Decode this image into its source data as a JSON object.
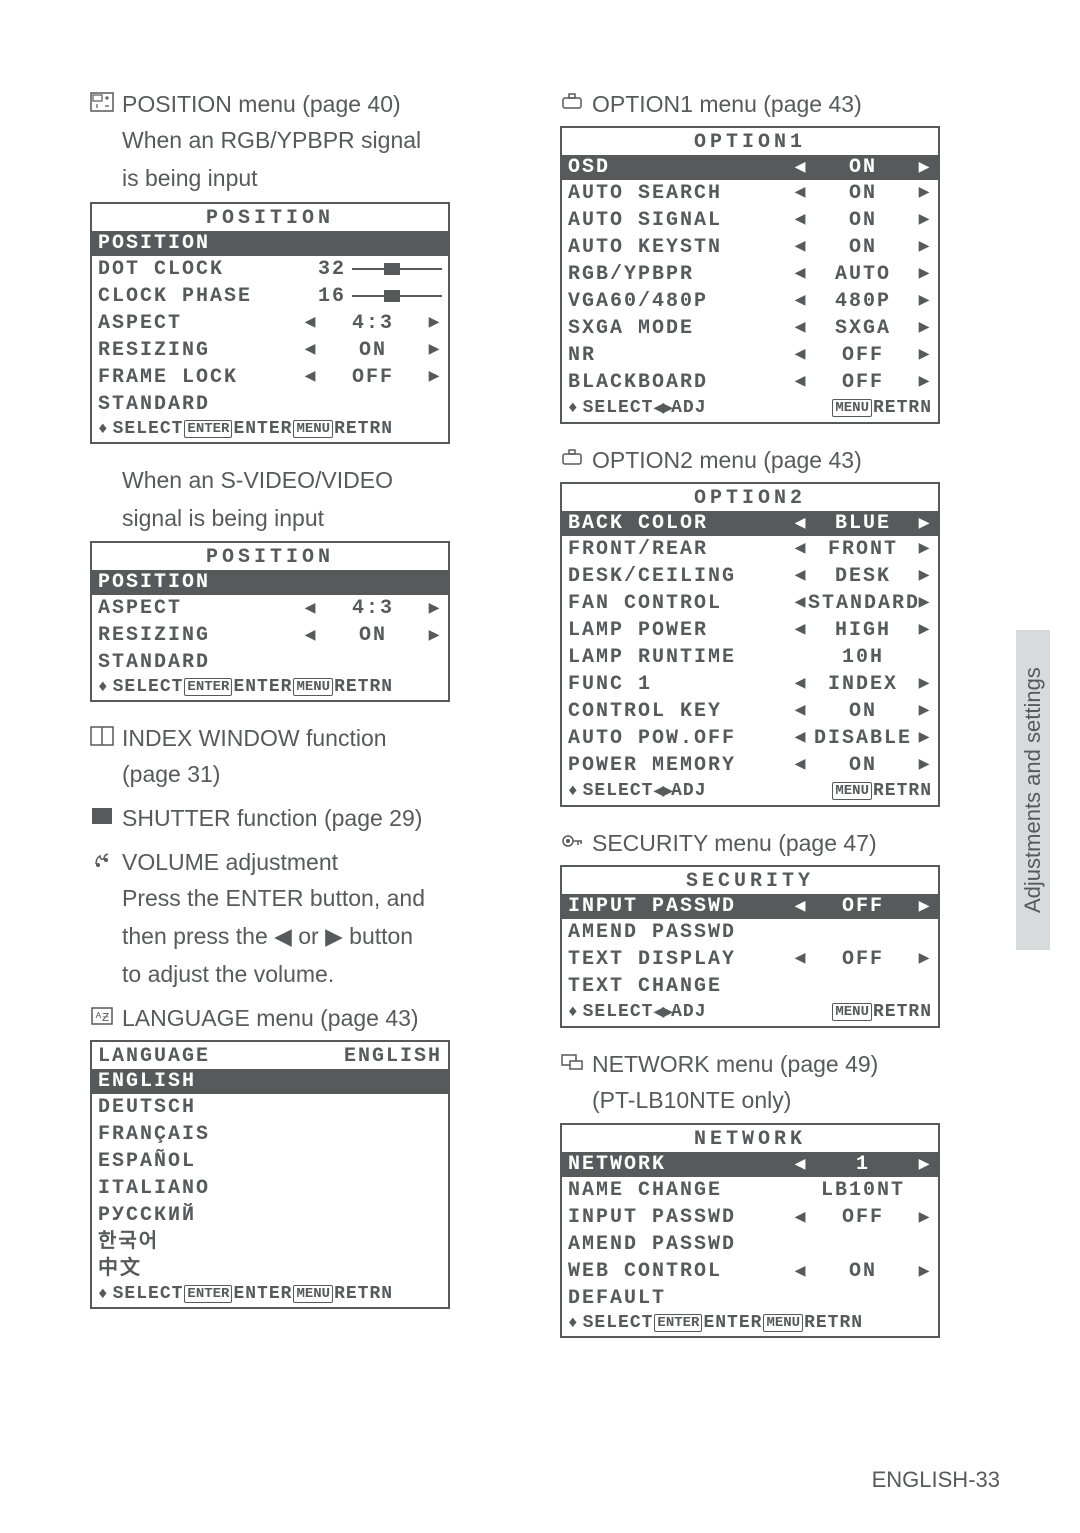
{
  "left": {
    "position_title": "POSITION menu (page 40)",
    "position_sub1": "When an RGB/YPBPR signal",
    "position_sub2": "is being input",
    "position_menu_rgb": {
      "title": "POSITION",
      "highlight": "POSITION",
      "rows": [
        {
          "label": "DOT CLOCK",
          "val": "32",
          "slider": true,
          "slider_pos": 0.45
        },
        {
          "label": "CLOCK PHASE",
          "val": "16",
          "slider": true,
          "slider_pos": 0.45
        },
        {
          "label": "ASPECT",
          "val": "4:3",
          "arrows": true
        },
        {
          "label": "RESIZING",
          "val": "ON",
          "arrows": true
        },
        {
          "label": "FRAME LOCK",
          "val": "OFF",
          "arrows": true
        },
        {
          "label": "STANDARD",
          "val": "",
          "arrows": false
        }
      ],
      "footer_type": "enter"
    },
    "svideo_sub1": "When an S-VIDEO/VIDEO",
    "svideo_sub2": "signal is being input",
    "position_menu_sv": {
      "title": "POSITION",
      "highlight": "POSITION",
      "rows": [
        {
          "label": "ASPECT",
          "val": "4:3",
          "arrows": true
        },
        {
          "label": "RESIZING",
          "val": "ON",
          "arrows": true
        },
        {
          "label": "STANDARD",
          "val": "",
          "arrows": false
        }
      ],
      "footer_type": "enter"
    },
    "index_title": "INDEX WINDOW function",
    "index_sub": "(page 31)",
    "shutter_title": "SHUTTER function (page 29)",
    "volume_title": "VOLUME adjustment",
    "volume_sub1": "Press the ENTER button, and",
    "volume_sub2": "then press the ◀ or ▶ button",
    "volume_sub3": "to adjust the volume.",
    "language_title": "LANGUAGE menu (page 43)",
    "language_menu": {
      "title_l": "LANGUAGE",
      "title_r": "ENGLISH",
      "highlight": "ENGLISH",
      "rows": [
        "DEUTSCH",
        "FRANÇAIS",
        "ESPAÑOL",
        "ITALIANO",
        "РУССКИЙ",
        "한국어",
        "中文"
      ],
      "footer_type": "enter"
    }
  },
  "right": {
    "option1_title": "OPTION1 menu (page 43)",
    "option1_menu": {
      "title": "OPTION1",
      "highlight_label": "OSD",
      "highlight_val": "ON",
      "rows": [
        {
          "label": "AUTO SEARCH",
          "val": "ON",
          "arrows": true
        },
        {
          "label": "AUTO SIGNAL",
          "val": "ON",
          "arrows": true
        },
        {
          "label": "AUTO KEYSTN",
          "val": "ON",
          "arrows": true
        },
        {
          "label": "RGB/YPBPR",
          "val": "AUTO",
          "arrows": true
        },
        {
          "label": "VGA60/480P",
          "val": "480P",
          "arrows": true
        },
        {
          "label": "SXGA MODE",
          "val": "SXGA",
          "arrows": true
        },
        {
          "label": "NR",
          "val": "OFF",
          "arrows": true
        },
        {
          "label": "BLACKBOARD",
          "val": "OFF",
          "arrows": true
        }
      ],
      "footer_type": "adj"
    },
    "option2_title": "OPTION2 menu (page 43)",
    "option2_menu": {
      "title": "OPTION2",
      "highlight_label": "BACK COLOR",
      "highlight_val": "BLUE",
      "rows": [
        {
          "label": "FRONT/REAR",
          "val": "FRONT",
          "arrows": true
        },
        {
          "label": "DESK/CEILING",
          "val": "DESK",
          "arrows": true
        },
        {
          "label": "FAN CONTROL",
          "val": "STANDARD",
          "arrows": true
        },
        {
          "label": "LAMP POWER",
          "val": "HIGH",
          "arrows": true
        },
        {
          "label": "LAMP RUNTIME",
          "val": "10H",
          "arrows": false
        },
        {
          "label": "FUNC 1",
          "val": "INDEX",
          "arrows": true
        },
        {
          "label": "CONTROL KEY",
          "val": "ON",
          "arrows": true
        },
        {
          "label": "AUTO POW.OFF",
          "val": "DISABLE",
          "arrows": true
        },
        {
          "label": "POWER MEMORY",
          "val": "ON",
          "arrows": true
        }
      ],
      "footer_type": "adj"
    },
    "security_title": "SECURITY menu (page 47)",
    "security_menu": {
      "title": "SECURITY",
      "highlight_label": "INPUT PASSWD",
      "highlight_val": "OFF",
      "rows": [
        {
          "label": "AMEND PASSWD",
          "val": "",
          "arrows": false
        },
        {
          "label": "TEXT DISPLAY",
          "val": "OFF",
          "arrows": true
        },
        {
          "label": "TEXT CHANGE",
          "val": "",
          "arrows": false
        }
      ],
      "footer_type": "adj"
    },
    "network_title": "NETWORK menu (page 49)",
    "network_sub": "(PT-LB10NTE only)",
    "network_menu": {
      "title": "NETWORK",
      "highlight_label": "NETWORK",
      "highlight_val": "1",
      "rows": [
        {
          "label": "NAME CHANGE",
          "val": "LB10NT",
          "arrows": false
        },
        {
          "label": "INPUT PASSWD",
          "val": "OFF",
          "arrows": true
        },
        {
          "label": "AMEND PASSWD",
          "val": "",
          "arrows": false
        },
        {
          "label": "WEB CONTROL",
          "val": "ON",
          "arrows": true
        },
        {
          "label": "DEFAULT",
          "val": "",
          "arrows": false
        }
      ],
      "footer_type": "enter"
    }
  },
  "tab": "Adjustments and settings",
  "page_num": "ENGLISH-33",
  "footer": {
    "select": "SELECT",
    "enter": "ENTER",
    "retrn": "RETRN",
    "adj": "ADJ",
    "enter_pill": "ENTER",
    "menu_pill": "MENU"
  }
}
